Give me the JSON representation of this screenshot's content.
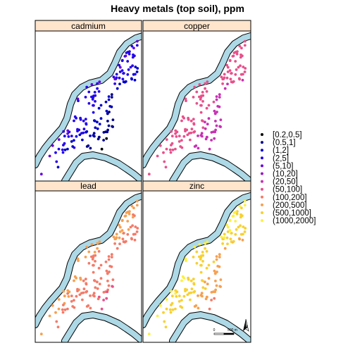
{
  "chart_data": {
    "type": "scatter",
    "title": "Heavy metals (top soil), ppm",
    "panels": [
      {
        "name": "cadmium"
      },
      {
        "name": "copper"
      },
      {
        "name": "lead"
      },
      {
        "name": "zinc"
      }
    ],
    "legend": {
      "placement": "right",
      "classes": [
        {
          "label": "[0.2,0.5]",
          "color": "#000000"
        },
        {
          "label": "(0.5,1]",
          "color": "#00008c"
        },
        {
          "label": "(1,2]",
          "color": "#0000c8"
        },
        {
          "label": "(2,5]",
          "color": "#2200ee"
        },
        {
          "label": "(5,10]",
          "color": "#6400e0"
        },
        {
          "label": "(10,20]",
          "color": "#9a18c8"
        },
        {
          "label": "(20,50]",
          "color": "#c830b4"
        },
        {
          "label": "(50,100]",
          "color": "#e8508a"
        },
        {
          "label": "(100,200]",
          "color": "#f47a68"
        },
        {
          "label": "(200,500]",
          "color": "#f6a050"
        },
        {
          "label": "(500,1000]",
          "color": "#f8d030"
        },
        {
          "label": "(1000,2000]",
          "color": "#fdf040"
        }
      ]
    },
    "colors": {
      "strip": "#ffe5cc",
      "river_fill": "#add8e6",
      "frame": "#000000"
    },
    "scale_bar": {
      "start_label": "0",
      "end_label": "500 m"
    },
    "north_arrow": {
      "label": "N"
    },
    "axes": {
      "grid": false,
      "ticks": false
    }
  }
}
